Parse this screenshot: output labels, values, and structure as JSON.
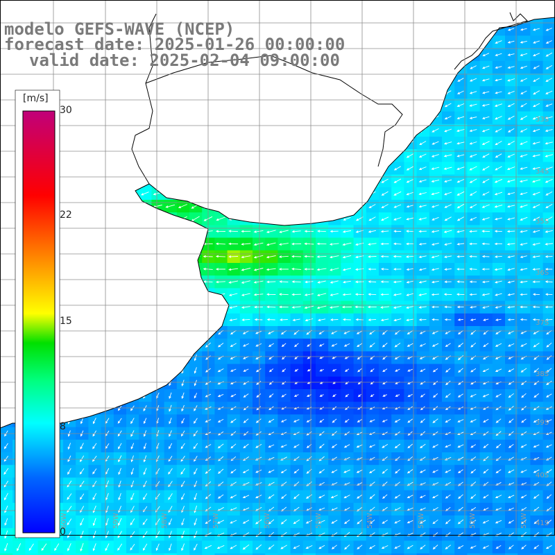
{
  "title": {
    "line1": "modelo GEFS-WAVE (NCEP)",
    "line2": "forecast date: 2025-01-26 00:00:00",
    "line3": "valid date: 2025-02-04 09:00:00"
  },
  "colorbar": {
    "unit": "[m/s]",
    "min": 0,
    "max": 30,
    "ticks": [
      "30",
      "22",
      "15",
      "8",
      "0"
    ],
    "colors": [
      "#0000ff",
      "#00aaff",
      "#00ffff",
      "#00ff40",
      "#ffff00",
      "#ff8000",
      "#ff0000",
      "#c0007a"
    ]
  },
  "map": {
    "lat_labels": [
      "33S",
      "34S",
      "35S",
      "36S",
      "37S",
      "38S",
      "39S",
      "40S",
      "41S"
    ],
    "lon_labels": [
      "60W",
      "59W",
      "58W",
      "57W",
      "56W",
      "55W",
      "54W",
      "53W",
      "52W",
      "51W"
    ],
    "field": "wind speed",
    "region": "Rio de la Plata / South Atlantic"
  }
}
